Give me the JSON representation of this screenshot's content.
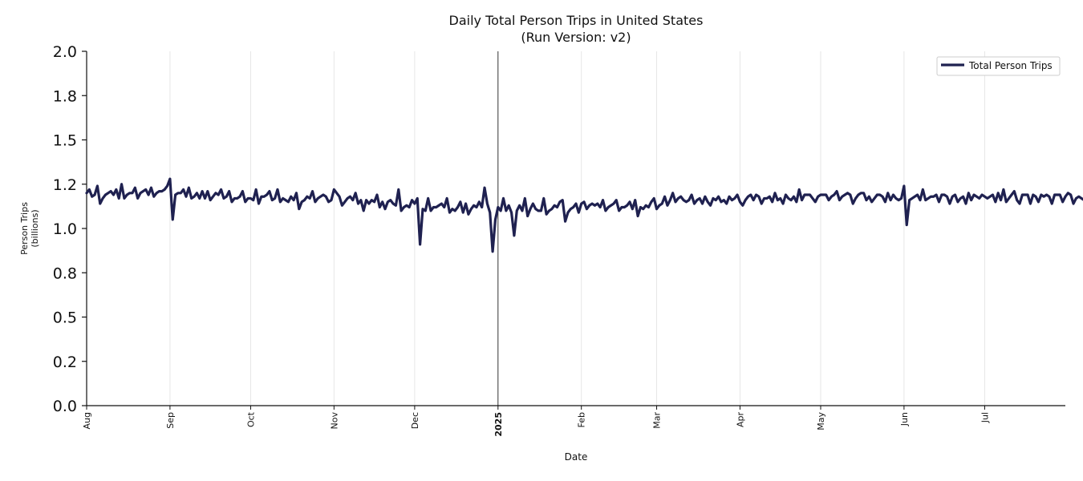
{
  "chart_data": {
    "type": "line",
    "title": "Daily Total Person Trips in United States",
    "subtitle": "(Run Version: v2)",
    "xlabel": "Date",
    "ylabel_line1": "Person Trips",
    "ylabel_line2": "(billions)",
    "ylim": [
      0,
      2.0
    ],
    "yticks": [
      {
        "value": 0.0,
        "label": "0.0"
      },
      {
        "value": 0.25,
        "label": "0.2"
      },
      {
        "value": 0.5,
        "label": "0.5"
      },
      {
        "value": 0.75,
        "label": "0.8"
      },
      {
        "value": 1.0,
        "label": "1.0"
      },
      {
        "value": 1.25,
        "label": "1.2"
      },
      {
        "value": 1.5,
        "label": "1.5"
      },
      {
        "value": 1.75,
        "label": "1.8"
      },
      {
        "value": 2.0,
        "label": "2.0"
      }
    ],
    "x_start": "2024-08-01",
    "x_end": "2025-07-31",
    "xticks": [
      {
        "date": "2024-08-01",
        "label": "Aug",
        "bold": false
      },
      {
        "date": "2024-09-01",
        "label": "Sep",
        "bold": false
      },
      {
        "date": "2024-10-01",
        "label": "Oct",
        "bold": false
      },
      {
        "date": "2024-11-01",
        "label": "Nov",
        "bold": false
      },
      {
        "date": "2024-12-01",
        "label": "Dec",
        "bold": false
      },
      {
        "date": "2025-01-01",
        "label": "2025",
        "bold": true
      },
      {
        "date": "2025-02-01",
        "label": "Feb",
        "bold": false
      },
      {
        "date": "2025-03-01",
        "label": "Mar",
        "bold": false
      },
      {
        "date": "2025-04-01",
        "label": "Apr",
        "bold": false
      },
      {
        "date": "2025-05-01",
        "label": "May",
        "bold": false
      },
      {
        "date": "2025-06-01",
        "label": "Jun",
        "bold": false
      },
      {
        "date": "2025-07-01",
        "label": "Jul",
        "bold": false
      }
    ],
    "year_marker": "2025-01-01",
    "grid": "vertical",
    "legend_position": "top-right",
    "series": [
      {
        "name": "Total Person Trips",
        "color": "#1f2150",
        "start_date": "2024-08-01",
        "values": [
          1.2,
          1.22,
          1.18,
          1.19,
          1.24,
          1.14,
          1.17,
          1.19,
          1.2,
          1.21,
          1.19,
          1.22,
          1.17,
          1.25,
          1.17,
          1.19,
          1.2,
          1.2,
          1.23,
          1.17,
          1.2,
          1.21,
          1.22,
          1.19,
          1.23,
          1.18,
          1.2,
          1.21,
          1.21,
          1.22,
          1.24,
          1.28,
          1.05,
          1.19,
          1.2,
          1.2,
          1.22,
          1.18,
          1.23,
          1.17,
          1.18,
          1.2,
          1.17,
          1.21,
          1.17,
          1.21,
          1.16,
          1.18,
          1.2,
          1.19,
          1.22,
          1.17,
          1.18,
          1.21,
          1.15,
          1.17,
          1.17,
          1.18,
          1.21,
          1.15,
          1.17,
          1.17,
          1.16,
          1.22,
          1.14,
          1.18,
          1.18,
          1.19,
          1.21,
          1.16,
          1.17,
          1.22,
          1.15,
          1.17,
          1.16,
          1.15,
          1.18,
          1.16,
          1.2,
          1.11,
          1.15,
          1.16,
          1.18,
          1.17,
          1.21,
          1.15,
          1.17,
          1.18,
          1.19,
          1.18,
          1.15,
          1.16,
          1.22,
          1.2,
          1.18,
          1.13,
          1.15,
          1.17,
          1.18,
          1.16,
          1.2,
          1.14,
          1.16,
          1.1,
          1.16,
          1.14,
          1.16,
          1.15,
          1.19,
          1.12,
          1.15,
          1.11,
          1.15,
          1.16,
          1.14,
          1.13,
          1.22,
          1.1,
          1.12,
          1.13,
          1.12,
          1.16,
          1.14,
          1.17,
          0.91,
          1.11,
          1.1,
          1.17,
          1.1,
          1.12,
          1.12,
          1.13,
          1.14,
          1.12,
          1.17,
          1.09,
          1.11,
          1.1,
          1.12,
          1.15,
          1.09,
          1.14,
          1.08,
          1.11,
          1.13,
          1.12,
          1.15,
          1.12,
          1.23,
          1.14,
          1.09,
          0.87,
          1.05,
          1.12,
          1.1,
          1.17,
          1.1,
          1.13,
          1.09,
          0.96,
          1.1,
          1.13,
          1.1,
          1.17,
          1.07,
          1.11,
          1.14,
          1.11,
          1.1,
          1.1,
          1.17,
          1.08,
          1.1,
          1.11,
          1.13,
          1.12,
          1.15,
          1.16,
          1.04,
          1.09,
          1.11,
          1.12,
          1.14,
          1.09,
          1.14,
          1.15,
          1.11,
          1.13,
          1.14,
          1.13,
          1.14,
          1.12,
          1.16,
          1.1,
          1.12,
          1.13,
          1.14,
          1.16,
          1.1,
          1.12,
          1.12,
          1.13,
          1.15,
          1.11,
          1.16,
          1.07,
          1.12,
          1.11,
          1.13,
          1.12,
          1.15,
          1.17,
          1.11,
          1.13,
          1.14,
          1.18,
          1.13,
          1.16,
          1.2,
          1.15,
          1.17,
          1.18,
          1.16,
          1.15,
          1.16,
          1.19,
          1.14,
          1.16,
          1.17,
          1.14,
          1.18,
          1.15,
          1.13,
          1.17,
          1.16,
          1.18,
          1.15,
          1.16,
          1.14,
          1.18,
          1.16,
          1.17,
          1.19,
          1.15,
          1.13,
          1.16,
          1.18,
          1.19,
          1.16,
          1.19,
          1.18,
          1.14,
          1.17,
          1.17,
          1.18,
          1.15,
          1.2,
          1.16,
          1.17,
          1.14,
          1.19,
          1.17,
          1.16,
          1.18,
          1.15,
          1.22,
          1.16,
          1.19,
          1.19,
          1.19,
          1.17,
          1.15,
          1.18,
          1.19,
          1.19,
          1.19,
          1.16,
          1.18,
          1.19,
          1.21,
          1.16,
          1.18,
          1.19,
          1.2,
          1.19,
          1.14,
          1.17,
          1.19,
          1.2,
          1.2,
          1.16,
          1.18,
          1.15,
          1.17,
          1.19,
          1.19,
          1.18,
          1.15,
          1.2,
          1.16,
          1.19,
          1.17,
          1.16,
          1.17,
          1.24,
          1.02,
          1.16,
          1.17,
          1.18,
          1.19,
          1.16,
          1.22,
          1.16,
          1.17,
          1.18,
          1.18,
          1.19,
          1.15,
          1.19,
          1.19,
          1.18,
          1.14,
          1.18,
          1.19,
          1.15,
          1.17,
          1.18,
          1.14,
          1.2,
          1.16,
          1.19,
          1.18,
          1.17,
          1.19,
          1.18,
          1.17,
          1.18,
          1.19,
          1.15,
          1.2,
          1.16,
          1.22,
          1.15,
          1.17,
          1.19,
          1.21,
          1.16,
          1.14,
          1.19,
          1.19,
          1.19,
          1.14,
          1.19,
          1.18,
          1.15,
          1.19,
          1.18,
          1.19,
          1.18,
          1.14,
          1.19,
          1.19,
          1.19,
          1.15,
          1.18,
          1.2,
          1.19,
          1.14,
          1.17,
          1.18,
          1.17,
          1.16
        ]
      }
    ]
  }
}
